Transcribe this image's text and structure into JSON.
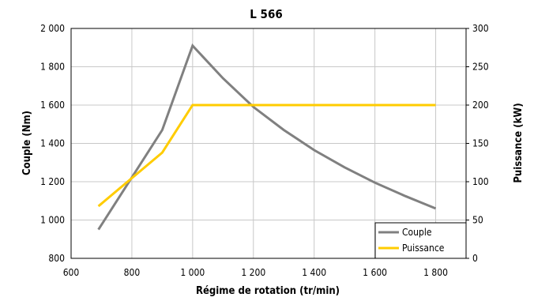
{
  "chart_data": {
    "type": "line",
    "title": "L 566",
    "xlabel": "Régime de rotation (tr/min)",
    "ylabel_left": "Couple (Nm)",
    "ylabel_right": "Puissance (kW)",
    "xlim": [
      600,
      1900
    ],
    "ylim_left": [
      800,
      2000
    ],
    "ylim_right": [
      0,
      300
    ],
    "x_ticks": [
      600,
      800,
      1000,
      1200,
      1400,
      1600,
      1800
    ],
    "x_tick_labels": [
      "600",
      "800",
      "1 000",
      "1 200",
      "1 400",
      "1 600",
      "1 800"
    ],
    "y_left_ticks": [
      800,
      1000,
      1200,
      1400,
      1600,
      1800,
      2000
    ],
    "y_left_tick_labels": [
      "800",
      "1 000",
      "1 200",
      "1 400",
      "1 600",
      "1 800",
      "2 000"
    ],
    "y_right_ticks": [
      0,
      50,
      100,
      150,
      200,
      250,
      300
    ],
    "y_right_tick_labels": [
      "0",
      "50",
      "100",
      "150",
      "200",
      "250",
      "300"
    ],
    "grid": true,
    "legend_position": "bottom-right",
    "series": [
      {
        "name": "Couple",
        "axis": "left",
        "color": "#808080",
        "x": [
          690,
          900,
          1000,
          1100,
          1200,
          1300,
          1400,
          1500,
          1600,
          1700,
          1800
        ],
        "y": [
          950,
          1470,
          1910,
          1740,
          1590,
          1470,
          1365,
          1275,
          1195,
          1125,
          1060
        ]
      },
      {
        "name": "Puissance",
        "axis": "right",
        "color": "#FFCC00",
        "x": [
          690,
          900,
          1000,
          1800
        ],
        "y": [
          68,
          138,
          200,
          200
        ]
      }
    ]
  }
}
